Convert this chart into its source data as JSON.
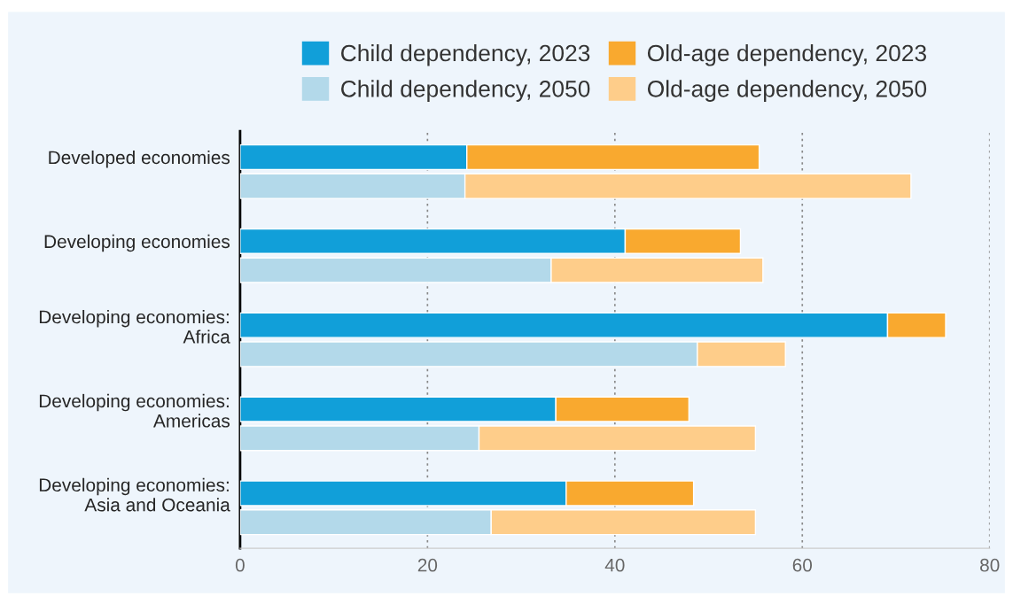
{
  "chart_data": {
    "type": "bar",
    "orientation": "horizontal",
    "stacked": true,
    "categories": [
      "Developed economies",
      null,
      "Developing economies",
      null,
      "Developing economies:\nAfrica",
      null,
      "Developing economies:\nAmericas",
      null,
      "Developing economies:\nAsia and Oceania",
      null
    ],
    "series": [
      {
        "name": "Child dependency, 2023",
        "color": "#119fd9",
        "values": [
          24.2,
          null,
          41.1,
          null,
          69.1,
          null,
          33.7,
          null,
          34.8,
          null
        ]
      },
      {
        "name": "Child dependency, 2050",
        "color": "#b3d9ea",
        "values": [
          null,
          24.0,
          null,
          33.2,
          null,
          48.8,
          null,
          25.5,
          null,
          26.8
        ]
      },
      {
        "name": "Old-age dependency, 2023",
        "color": "#f9a92f",
        "values": [
          31.2,
          null,
          12.3,
          null,
          6.2,
          null,
          14.2,
          null,
          13.6,
          null
        ]
      },
      {
        "name": "Old-age dependency, 2050",
        "color": "#fecd8a",
        "values": [
          null,
          47.6,
          null,
          22.6,
          null,
          9.4,
          null,
          29.5,
          null,
          28.2
        ]
      }
    ],
    "xlim": [
      0,
      80
    ],
    "xticks": [
      0,
      20,
      40,
      60,
      80
    ],
    "grid": "x",
    "legend": "top"
  }
}
